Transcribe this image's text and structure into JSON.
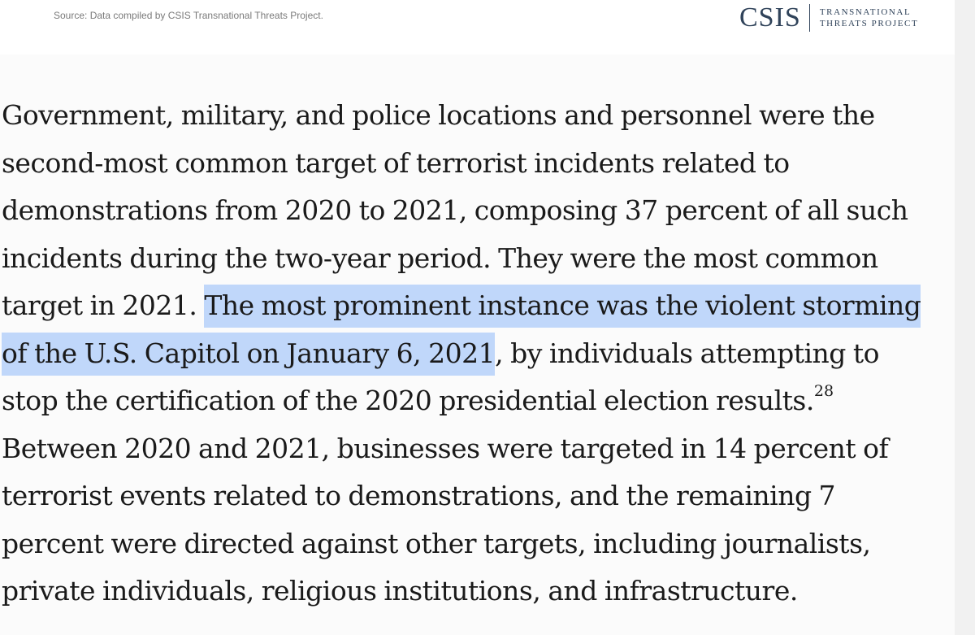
{
  "figure_footer": {
    "source": "Source: Data compiled by CSIS Transnational Threats Project.",
    "logo": {
      "wordmark": "CSIS",
      "tagline_line1": "TRANSNATIONAL",
      "tagline_line2": "THREATS PROJECT"
    }
  },
  "article": {
    "lines": [
      "Government, military, and police locations and personnel were the",
      "second-most common target of terrorist incidents related to",
      "demonstrations from 2020 to 2021, composing 37 percent of all such",
      "incidents during the two-year period. They were the most common",
      "target in 2021. ",
      "The most prominent instance was the violent storming",
      "of the U.S. Capitol on January 6, 2021",
      ", by individuals attempting to",
      "stop the certification of the 2020 presidential election results.",
      "28",
      "Between 2020 and 2021, businesses were targeted in 14 percent of",
      "terrorist events related to demonstrations, and the remaining 7",
      "percent were directed against other targets, including journalists,",
      "private individuals, religious institutions, and infrastructure."
    ],
    "selection_color": "#c0d7fa"
  }
}
